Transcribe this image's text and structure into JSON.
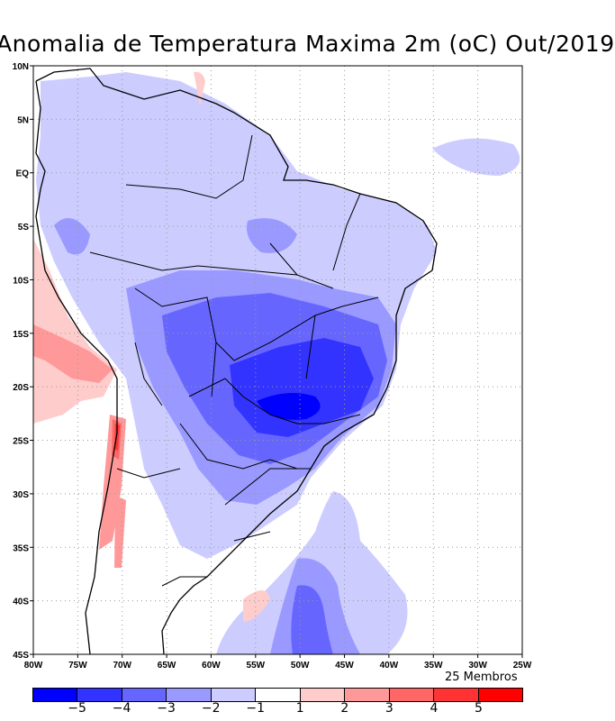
{
  "title": "Anomalia de Temperatura Maxima 2m (oC) Out/2019",
  "members_label": "25 Membros",
  "lon_ticks": [
    "80W",
    "75W",
    "70W",
    "65W",
    "60W",
    "55W",
    "50W",
    "45W",
    "40W",
    "35W",
    "30W",
    "25W"
  ],
  "lat_ticks": [
    "10N",
    "5N",
    "EQ",
    "5S",
    "10S",
    "15S",
    "20S",
    "25S",
    "30S",
    "35S",
    "40S",
    "45S"
  ],
  "colorbar": {
    "labels": [
      "-5",
      "-4",
      "-3",
      "-2",
      "-1",
      "1",
      "2",
      "3",
      "4",
      "5"
    ],
    "colors": [
      "#0000ff",
      "#3333ff",
      "#6666ff",
      "#9999ff",
      "#ccccff",
      "#ffffff",
      "#ffcccc",
      "#ff9999",
      "#ff6666",
      "#ff3333",
      "#ff0000"
    ]
  }
}
